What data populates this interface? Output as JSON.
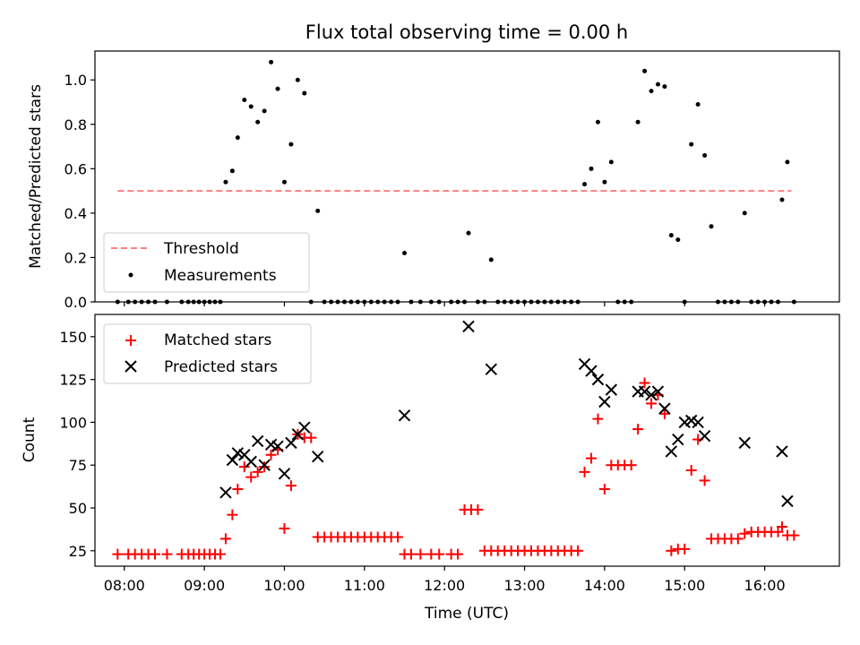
{
  "chart_data": [
    {
      "type": "scatter",
      "title": "Flux total observing time = 0.00 h",
      "xlabel": "",
      "ylabel": "Matched/Predicted stars",
      "xlim": [
        "07:38",
        "16:56"
      ],
      "ylim": [
        0,
        1.13
      ],
      "yticks": [
        "0.0",
        "0.2",
        "0.4",
        "0.6",
        "0.8",
        "1.0"
      ],
      "legend_position": "lower-left",
      "series": [
        {
          "name": "Threshold",
          "kind": "dashed-line",
          "color": "#ff7f7f",
          "x": [
            "07:55",
            "16:20"
          ],
          "y": [
            0.5,
            0.5
          ]
        },
        {
          "name": "Measurements",
          "kind": "point",
          "color": "#000000",
          "points": [
            [
              "07:55",
              0
            ],
            [
              "08:03",
              0
            ],
            [
              "08:08",
              0
            ],
            [
              "08:13",
              0
            ],
            [
              "08:18",
              0
            ],
            [
              "08:23",
              0
            ],
            [
              "08:32",
              0
            ],
            [
              "08:43",
              0
            ],
            [
              "08:48",
              0
            ],
            [
              "08:52",
              0
            ],
            [
              "08:56",
              0
            ],
            [
              "09:00",
              0
            ],
            [
              "09:04",
              0
            ],
            [
              "09:08",
              0
            ],
            [
              "09:12",
              0
            ],
            [
              "09:16",
              0.54
            ],
            [
              "09:21",
              0.59
            ],
            [
              "09:25",
              0.74
            ],
            [
              "09:30",
              0.91
            ],
            [
              "09:35",
              0.88
            ],
            [
              "09:40",
              0.81
            ],
            [
              "09:45",
              0.86
            ],
            [
              "09:50",
              1.08
            ],
            [
              "09:55",
              0.96
            ],
            [
              "10:00",
              0.54
            ],
            [
              "10:05",
              0.71
            ],
            [
              "10:10",
              1.0
            ],
            [
              "10:15",
              0.94
            ],
            [
              "10:20",
              0.0
            ],
            [
              "10:25",
              0.41
            ],
            [
              "10:30",
              0
            ],
            [
              "10:35",
              0
            ],
            [
              "10:40",
              0
            ],
            [
              "10:45",
              0
            ],
            [
              "10:50",
              0
            ],
            [
              "10:55",
              0
            ],
            [
              "11:00",
              0
            ],
            [
              "11:05",
              0
            ],
            [
              "11:10",
              0
            ],
            [
              "11:15",
              0
            ],
            [
              "11:20",
              0
            ],
            [
              "11:25",
              0
            ],
            [
              "11:30",
              0.22
            ],
            [
              "11:35",
              0
            ],
            [
              "11:42",
              0
            ],
            [
              "11:50",
              0
            ],
            [
              "11:56",
              0
            ],
            [
              "12:05",
              0
            ],
            [
              "12:10",
              0
            ],
            [
              "12:15",
              0
            ],
            [
              "12:18",
              0.31
            ],
            [
              "12:25",
              0
            ],
            [
              "12:30",
              0
            ],
            [
              "12:35",
              0.19
            ],
            [
              "12:40",
              0
            ],
            [
              "12:45",
              0
            ],
            [
              "12:50",
              0
            ],
            [
              "12:55",
              0
            ],
            [
              "13:00",
              0
            ],
            [
              "13:05",
              0
            ],
            [
              "13:10",
              0
            ],
            [
              "13:15",
              0
            ],
            [
              "13:20",
              0
            ],
            [
              "13:25",
              0
            ],
            [
              "13:30",
              0
            ],
            [
              "13:35",
              0
            ],
            [
              "13:40",
              0
            ],
            [
              "13:45",
              0.53
            ],
            [
              "13:50",
              0.6
            ],
            [
              "13:55",
              0.81
            ],
            [
              "14:00",
              0.54
            ],
            [
              "14:05",
              0.63
            ],
            [
              "14:10",
              0
            ],
            [
              "14:15",
              0
            ],
            [
              "14:20",
              0
            ],
            [
              "14:25",
              0.81
            ],
            [
              "14:30",
              1.04
            ],
            [
              "14:35",
              0.95
            ],
            [
              "14:40",
              0.98
            ],
            [
              "14:45",
              0.97
            ],
            [
              "14:50",
              0.3
            ],
            [
              "14:55",
              0.28
            ],
            [
              "15:00",
              0
            ],
            [
              "15:05",
              0.71
            ],
            [
              "15:10",
              0.89
            ],
            [
              "15:15",
              0.66
            ],
            [
              "15:20",
              0.34
            ],
            [
              "15:25",
              0
            ],
            [
              "15:30",
              0
            ],
            [
              "15:35",
              0
            ],
            [
              "15:40",
              0
            ],
            [
              "15:45",
              0.4
            ],
            [
              "15:50",
              0
            ],
            [
              "15:55",
              0
            ],
            [
              "16:00",
              0
            ],
            [
              "16:05",
              0
            ],
            [
              "16:10",
              0
            ],
            [
              "16:13",
              0.46
            ],
            [
              "16:17",
              0.63
            ],
            [
              "16:22",
              0
            ]
          ]
        }
      ]
    },
    {
      "type": "scatter",
      "title": "",
      "xlabel": "Time (UTC)",
      "ylabel": "Count",
      "xlim": [
        "07:38",
        "16:56"
      ],
      "ylim": [
        16,
        163
      ],
      "xticks": [
        "08:00",
        "09:00",
        "10:00",
        "11:00",
        "12:00",
        "13:00",
        "14:00",
        "15:00",
        "16:00"
      ],
      "yticks": [
        "25",
        "50",
        "75",
        "100",
        "125",
        "150"
      ],
      "legend_position": "upper-left",
      "series": [
        {
          "name": "Matched stars",
          "kind": "plus",
          "color": "#ff0000",
          "points": [
            [
              "07:55",
              23
            ],
            [
              "08:03",
              23
            ],
            [
              "08:08",
              23
            ],
            [
              "08:13",
              23
            ],
            [
              "08:18",
              23
            ],
            [
              "08:23",
              23
            ],
            [
              "08:32",
              23
            ],
            [
              "08:43",
              23
            ],
            [
              "08:48",
              23
            ],
            [
              "08:52",
              23
            ],
            [
              "08:56",
              23
            ],
            [
              "09:00",
              23
            ],
            [
              "09:04",
              23
            ],
            [
              "09:08",
              23
            ],
            [
              "09:12",
              23
            ],
            [
              "09:16",
              32
            ],
            [
              "09:21",
              46
            ],
            [
              "09:25",
              61
            ],
            [
              "09:30",
              74
            ],
            [
              "09:35",
              68
            ],
            [
              "09:40",
              71
            ],
            [
              "09:45",
              74
            ],
            [
              "09:50",
              81
            ],
            [
              "09:55",
              84
            ],
            [
              "10:00",
              38
            ],
            [
              "10:05",
              63
            ],
            [
              "10:10",
              93
            ],
            [
              "10:15",
              91
            ],
            [
              "10:20",
              91
            ],
            [
              "10:25",
              33
            ],
            [
              "10:30",
              33
            ],
            [
              "10:35",
              33
            ],
            [
              "10:40",
              33
            ],
            [
              "10:45",
              33
            ],
            [
              "10:50",
              33
            ],
            [
              "10:55",
              33
            ],
            [
              "11:00",
              33
            ],
            [
              "11:05",
              33
            ],
            [
              "11:10",
              33
            ],
            [
              "11:15",
              33
            ],
            [
              "11:20",
              33
            ],
            [
              "11:25",
              33
            ],
            [
              "11:30",
              23
            ],
            [
              "11:35",
              23
            ],
            [
              "11:42",
              23
            ],
            [
              "11:50",
              23
            ],
            [
              "11:56",
              23
            ],
            [
              "12:05",
              23
            ],
            [
              "12:10",
              23
            ],
            [
              "12:15",
              49
            ],
            [
              "12:20",
              49
            ],
            [
              "12:25",
              49
            ],
            [
              "12:30",
              25
            ],
            [
              "12:35",
              25
            ],
            [
              "12:40",
              25
            ],
            [
              "12:45",
              25
            ],
            [
              "12:50",
              25
            ],
            [
              "12:55",
              25
            ],
            [
              "13:00",
              25
            ],
            [
              "13:05",
              25
            ],
            [
              "13:10",
              25
            ],
            [
              "13:15",
              25
            ],
            [
              "13:20",
              25
            ],
            [
              "13:25",
              25
            ],
            [
              "13:30",
              25
            ],
            [
              "13:35",
              25
            ],
            [
              "13:40",
              25
            ],
            [
              "13:45",
              71
            ],
            [
              "13:50",
              79
            ],
            [
              "13:55",
              102
            ],
            [
              "14:00",
              61
            ],
            [
              "14:05",
              75
            ],
            [
              "14:10",
              75
            ],
            [
              "14:15",
              75
            ],
            [
              "14:20",
              75
            ],
            [
              "14:25",
              96
            ],
            [
              "14:30",
              123
            ],
            [
              "14:35",
              111
            ],
            [
              "14:40",
              116
            ],
            [
              "14:45",
              105
            ],
            [
              "14:50",
              25
            ],
            [
              "14:55",
              26
            ],
            [
              "15:00",
              26
            ],
            [
              "15:05",
              72
            ],
            [
              "15:10",
              90
            ],
            [
              "15:15",
              66
            ],
            [
              "15:20",
              32
            ],
            [
              "15:25",
              32
            ],
            [
              "15:30",
              32
            ],
            [
              "15:35",
              32
            ],
            [
              "15:40",
              32
            ],
            [
              "15:45",
              35
            ],
            [
              "15:50",
              36
            ],
            [
              "15:55",
              36
            ],
            [
              "16:00",
              36
            ],
            [
              "16:05",
              36
            ],
            [
              "16:10",
              36
            ],
            [
              "16:13",
              39
            ],
            [
              "16:17",
              34
            ],
            [
              "16:22",
              34
            ]
          ]
        },
        {
          "name": "Predicted stars",
          "kind": "cross",
          "color": "#000000",
          "points": [
            [
              "09:16",
              59
            ],
            [
              "09:21",
              78
            ],
            [
              "09:25",
              82
            ],
            [
              "09:30",
              81
            ],
            [
              "09:35",
              77
            ],
            [
              "09:40",
              89
            ],
            [
              "09:45",
              75
            ],
            [
              "09:50",
              87
            ],
            [
              "09:55",
              86
            ],
            [
              "10:00",
              70
            ],
            [
              "10:05",
              88
            ],
            [
              "10:10",
              93
            ],
            [
              "10:15",
              97
            ],
            [
              "10:25",
              80
            ],
            [
              "11:30",
              104
            ],
            [
              "12:18",
              156
            ],
            [
              "12:35",
              131
            ],
            [
              "13:45",
              134
            ],
            [
              "13:50",
              130
            ],
            [
              "13:55",
              125
            ],
            [
              "14:00",
              112
            ],
            [
              "14:05",
              119
            ],
            [
              "14:25",
              118
            ],
            [
              "14:30",
              118
            ],
            [
              "14:35",
              116
            ],
            [
              "14:40",
              118
            ],
            [
              "14:45",
              108
            ],
            [
              "14:50",
              83
            ],
            [
              "14:55",
              90
            ],
            [
              "15:00",
              100
            ],
            [
              "15:05",
              101
            ],
            [
              "15:10",
              100
            ],
            [
              "15:15",
              92
            ],
            [
              "15:45",
              88
            ],
            [
              "16:13",
              83
            ],
            [
              "16:17",
              54
            ]
          ]
        }
      ]
    }
  ]
}
